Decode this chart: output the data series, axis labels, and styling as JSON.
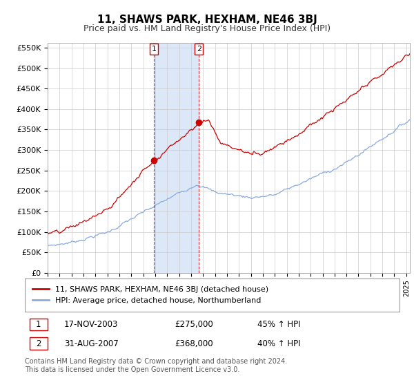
{
  "title": "11, SHAWS PARK, HEXHAM, NE46 3BJ",
  "subtitle": "Price paid vs. HM Land Registry's House Price Index (HPI)",
  "title_fontsize": 11,
  "subtitle_fontsize": 9,
  "ylim": [
    0,
    562500
  ],
  "yticks": [
    0,
    50000,
    100000,
    150000,
    200000,
    250000,
    300000,
    350000,
    400000,
    450000,
    500000,
    550000
  ],
  "red_line_color": "#cc0000",
  "blue_line_color": "#88aadd",
  "sale1_x": 2003.88,
  "sale1_y": 275000,
  "sale2_x": 2007.66,
  "sale2_y": 368000,
  "shade_color": "#dce8f8",
  "background_color": "#ffffff",
  "grid_color": "#cccccc",
  "legend_label_red": "11, SHAWS PARK, HEXHAM, NE46 3BJ (detached house)",
  "legend_label_blue": "HPI: Average price, detached house, Northumberland",
  "table_rows": [
    [
      "1",
      "17-NOV-2003",
      "£275,000",
      "45% ↑ HPI"
    ],
    [
      "2",
      "31-AUG-2007",
      "£368,000",
      "40% ↑ HPI"
    ]
  ],
  "footer": "Contains HM Land Registry data © Crown copyright and database right 2024.\nThis data is licensed under the Open Government Licence v3.0.",
  "xmin": 1995.0,
  "xmax": 2025.3
}
